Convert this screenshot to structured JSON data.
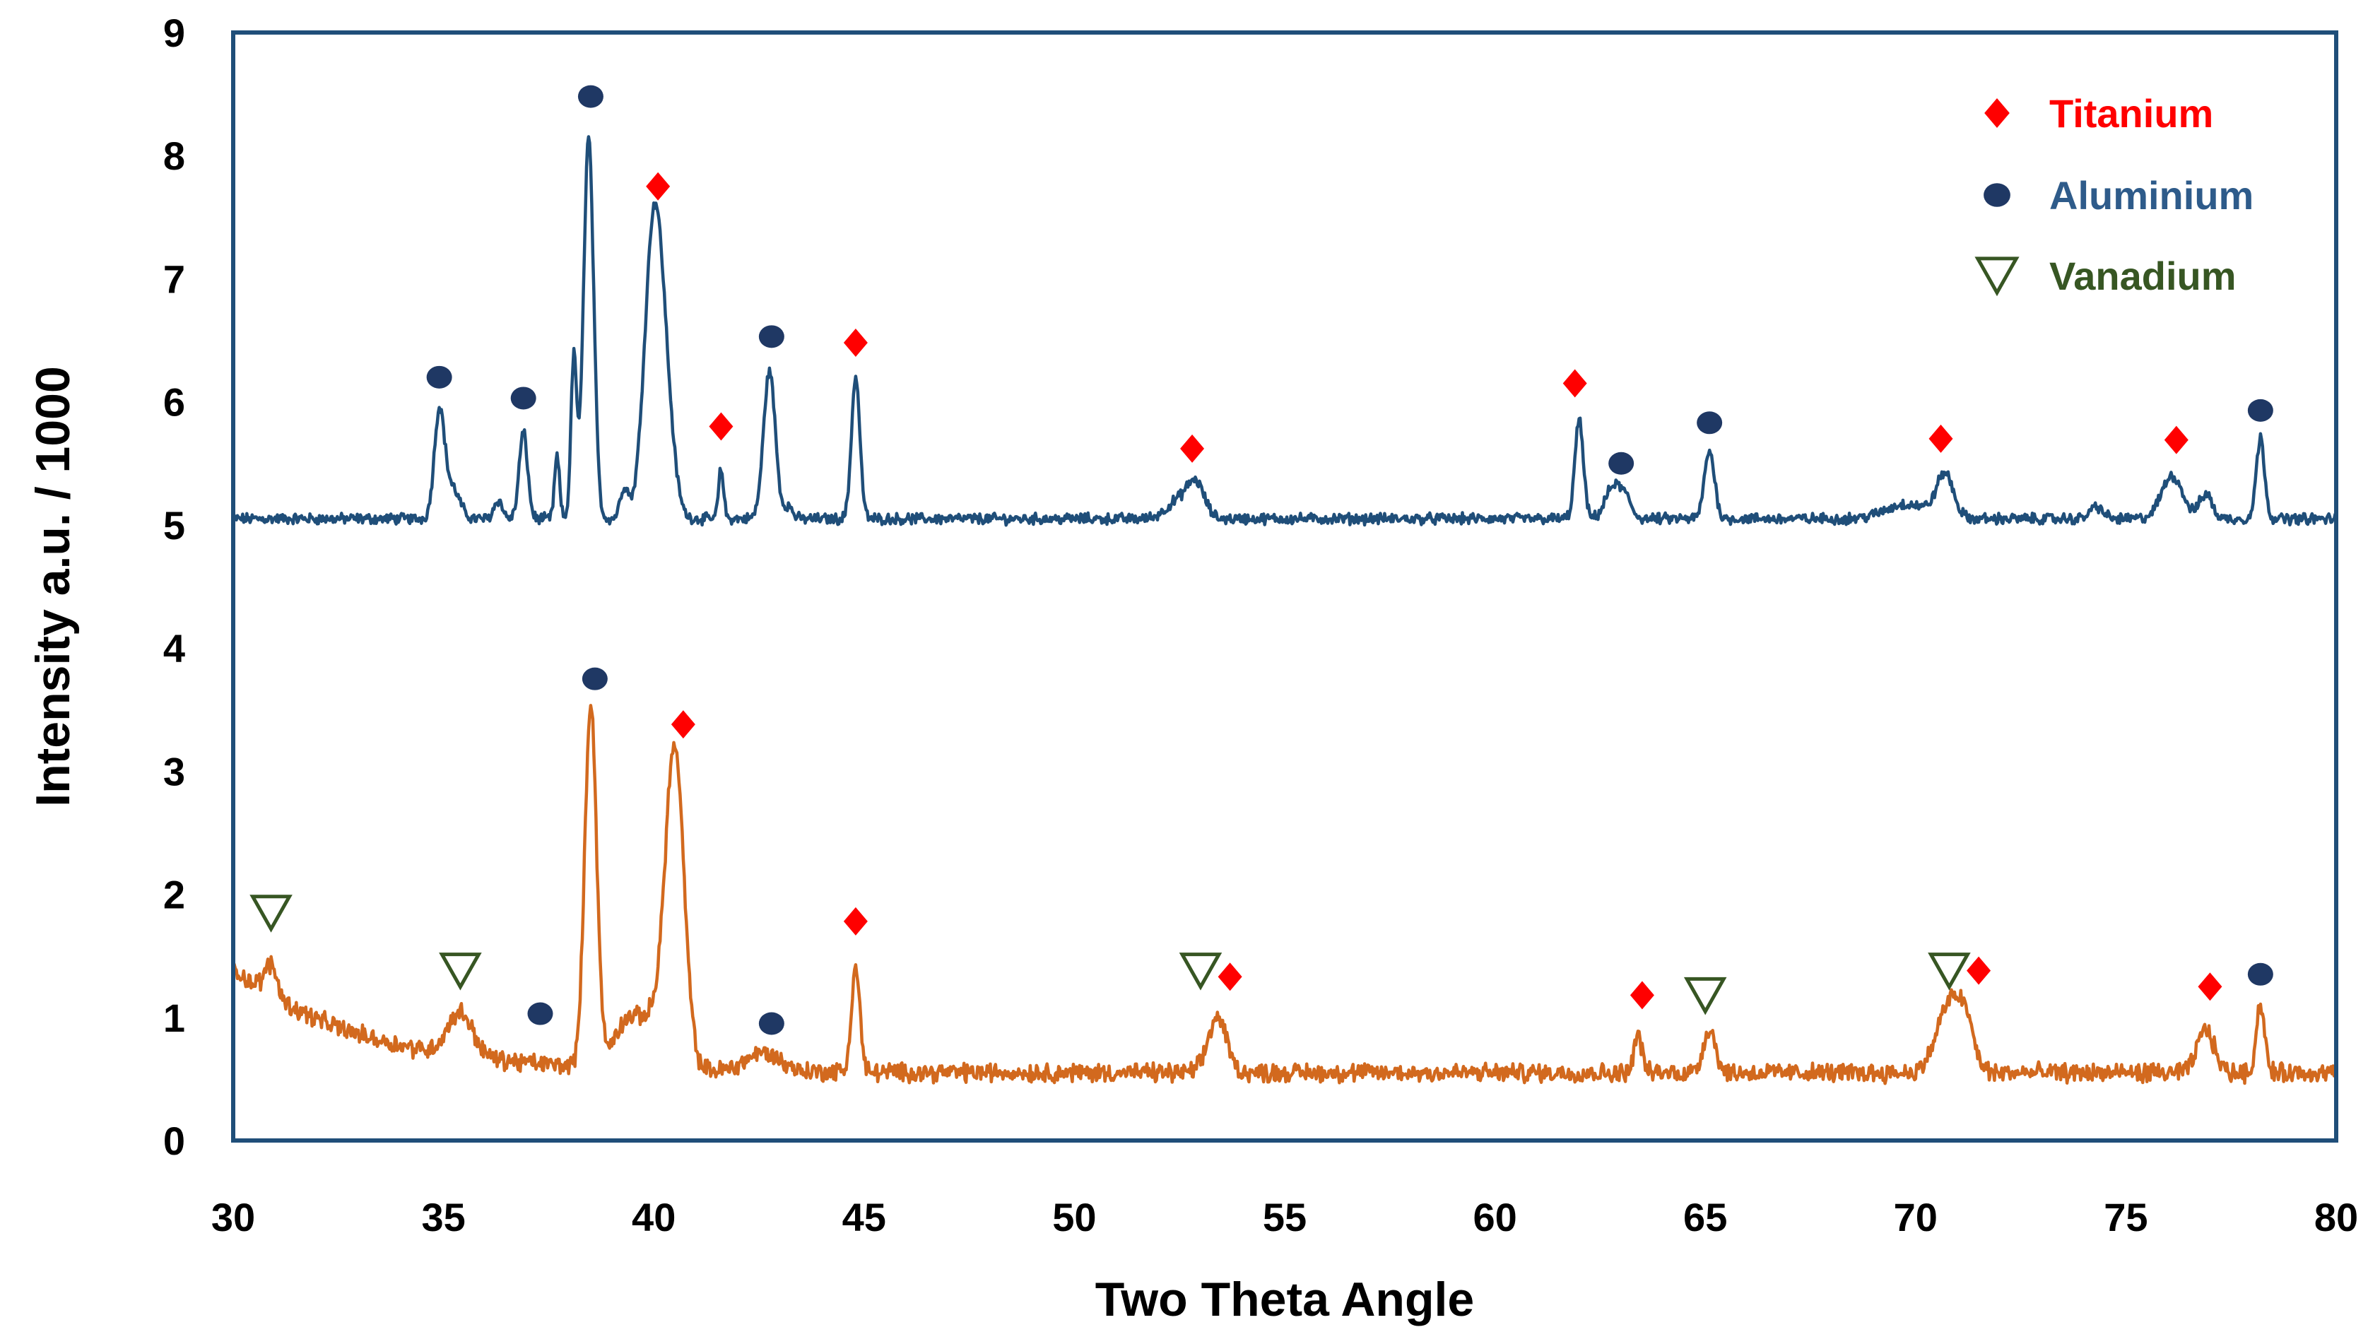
{
  "chart_data": {
    "type": "line",
    "title": "",
    "xlabel": "Two Theta Angle",
    "ylabel": "Intensity a.u. / 1000",
    "xlim": [
      30,
      80
    ],
    "ylim": [
      0,
      9
    ],
    "x_ticks": [
      30,
      35,
      40,
      45,
      50,
      55,
      60,
      65,
      70,
      75,
      80
    ],
    "y_ticks": [
      0,
      1,
      2,
      3,
      4,
      5,
      6,
      7,
      8,
      9
    ],
    "grid": false,
    "legend_position": "top-right",
    "colors": {
      "upper_series": "#1f4e79",
      "lower_series": "#d2691e",
      "titanium": "#ff0000",
      "aluminium": "#1f3864",
      "vanadium": "#375623",
      "frame": "#1f4e79"
    },
    "legend": [
      {
        "label": "Titanium",
        "marker": "diamond",
        "color": "#ff0000"
      },
      {
        "label": "Aluminium",
        "marker": "circle",
        "color": "#2e5b8a"
      },
      {
        "label": "Vanadium",
        "marker": "triangle-down-open",
        "color": "#375623"
      }
    ],
    "series": [
      {
        "color": "#1f4e79",
        "baseline": 5.05,
        "noise": 0.035,
        "peaks": [
          [
            34.9,
            0.85,
            0.12
          ],
          [
            35.2,
            0.25,
            0.18
          ],
          [
            36.3,
            0.15,
            0.1
          ],
          [
            36.9,
            0.7,
            0.1
          ],
          [
            37.7,
            0.5,
            0.06
          ],
          [
            38.1,
            1.3,
            0.07
          ],
          [
            38.45,
            3.1,
            0.12
          ],
          [
            39.3,
            0.25,
            0.1
          ],
          [
            40.0,
            2.35,
            0.22
          ],
          [
            40.3,
            0.6,
            0.2
          ],
          [
            41.6,
            0.4,
            0.06
          ],
          [
            42.75,
            1.2,
            0.14
          ],
          [
            43.2,
            0.1,
            0.1
          ],
          [
            44.8,
            1.15,
            0.1
          ],
          [
            52.5,
            0.15,
            0.3
          ],
          [
            52.9,
            0.25,
            0.2
          ],
          [
            62.0,
            0.8,
            0.1
          ],
          [
            62.8,
            0.25,
            0.18
          ],
          [
            63.1,
            0.15,
            0.15
          ],
          [
            65.1,
            0.55,
            0.12
          ],
          [
            69.8,
            0.12,
            0.5
          ],
          [
            70.7,
            0.35,
            0.2
          ],
          [
            74.3,
            0.1,
            0.15
          ],
          [
            76.1,
            0.35,
            0.25
          ],
          [
            76.9,
            0.2,
            0.15
          ],
          [
            78.2,
            0.65,
            0.1
          ]
        ],
        "peak_markers": [
          {
            "x": 34.9,
            "y": 6.2,
            "phase": "aluminium"
          },
          {
            "x": 36.9,
            "y": 6.03,
            "phase": "aluminium"
          },
          {
            "x": 38.5,
            "y": 8.48,
            "phase": "aluminium"
          },
          {
            "x": 40.1,
            "y": 7.75,
            "phase": "titanium"
          },
          {
            "x": 41.6,
            "y": 5.8,
            "phase": "titanium"
          },
          {
            "x": 42.8,
            "y": 6.53,
            "phase": "aluminium"
          },
          {
            "x": 44.8,
            "y": 6.48,
            "phase": "titanium"
          },
          {
            "x": 52.8,
            "y": 5.62,
            "phase": "titanium"
          },
          {
            "x": 61.9,
            "y": 6.15,
            "phase": "titanium"
          },
          {
            "x": 63.0,
            "y": 5.5,
            "phase": "aluminium"
          },
          {
            "x": 65.1,
            "y": 5.83,
            "phase": "aluminium"
          },
          {
            "x": 70.6,
            "y": 5.7,
            "phase": "titanium"
          },
          {
            "x": 76.2,
            "y": 5.69,
            "phase": "titanium"
          },
          {
            "x": 78.2,
            "y": 5.93,
            "phase": "aluminium"
          }
        ]
      },
      {
        "color": "#d2691e",
        "baseline": 0.55,
        "noise": 0.06,
        "background_rise": {
          "amplitude": 0.85,
          "decay": 3.0
        },
        "peaks": [
          [
            30.9,
            0.25,
            0.15
          ],
          [
            35.4,
            0.35,
            0.3
          ],
          [
            38.5,
            2.95,
            0.14
          ],
          [
            39.3,
            0.3,
            0.3
          ],
          [
            40.5,
            2.45,
            0.22
          ],
          [
            40.0,
            0.4,
            0.4
          ],
          [
            42.6,
            0.15,
            0.4
          ],
          [
            44.8,
            0.85,
            0.1
          ],
          [
            53.4,
            0.45,
            0.22
          ],
          [
            63.4,
            0.3,
            0.1
          ],
          [
            65.1,
            0.35,
            0.15
          ],
          [
            70.8,
            0.55,
            0.3
          ],
          [
            71.2,
            0.3,
            0.2
          ],
          [
            76.9,
            0.35,
            0.2
          ],
          [
            78.2,
            0.55,
            0.1
          ]
        ],
        "peak_markers": [
          {
            "x": 30.9,
            "y": 1.85,
            "phase": "vanadium"
          },
          {
            "x": 35.4,
            "y": 1.38,
            "phase": "vanadium"
          },
          {
            "x": 37.3,
            "y": 1.03,
            "phase": "aluminium"
          },
          {
            "x": 38.6,
            "y": 3.75,
            "phase": "aluminium"
          },
          {
            "x": 40.7,
            "y": 3.38,
            "phase": "titanium"
          },
          {
            "x": 42.8,
            "y": 0.95,
            "phase": "aluminium"
          },
          {
            "x": 44.8,
            "y": 1.78,
            "phase": "titanium"
          },
          {
            "x": 53.0,
            "y": 1.38,
            "phase": "vanadium"
          },
          {
            "x": 53.7,
            "y": 1.33,
            "phase": "titanium"
          },
          {
            "x": 63.5,
            "y": 1.18,
            "phase": "titanium"
          },
          {
            "x": 65.0,
            "y": 1.18,
            "phase": "vanadium"
          },
          {
            "x": 70.8,
            "y": 1.38,
            "phase": "vanadium"
          },
          {
            "x": 71.5,
            "y": 1.38,
            "phase": "titanium"
          },
          {
            "x": 77.0,
            "y": 1.25,
            "phase": "titanium"
          },
          {
            "x": 78.2,
            "y": 1.35,
            "phase": "aluminium"
          }
        ]
      }
    ]
  }
}
